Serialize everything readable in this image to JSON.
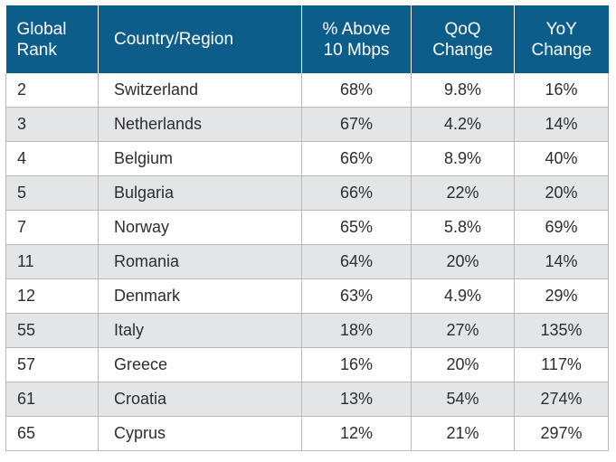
{
  "chart_data": {
    "type": "table",
    "columns": [
      "Global\nRank",
      "Country/Region",
      "% Above\n10 Mbps",
      "QoQ\nChange",
      "YoY\nChange"
    ],
    "rows": [
      [
        "2",
        "Switzerland",
        "68%",
        "9.8%",
        "16%"
      ],
      [
        "3",
        "Netherlands",
        "67%",
        "4.2%",
        "14%"
      ],
      [
        "4",
        "Belgium",
        "66%",
        "8.9%",
        "40%"
      ],
      [
        "5",
        "Bulgaria",
        "66%",
        "22%",
        "20%"
      ],
      [
        "7",
        "Norway",
        "65%",
        "5.8%",
        "69%"
      ],
      [
        "11",
        "Romania",
        "64%",
        "20%",
        "14%"
      ],
      [
        "12",
        "Denmark",
        "63%",
        "4.9%",
        "29%"
      ],
      [
        "55",
        "Italy",
        "18%",
        "27%",
        "135%"
      ],
      [
        "57",
        "Greece",
        "16%",
        "20%",
        "117%"
      ],
      [
        "61",
        "Croatia",
        "13%",
        "54%",
        "274%"
      ],
      [
        "65",
        "Cyprus",
        "12%",
        "21%",
        "297%"
      ]
    ]
  },
  "colors": {
    "header_bg": "#0c5d8a",
    "header_text": "#ffffff",
    "shaded_row": "#e4e5e7",
    "border": "#b9b9b9"
  }
}
